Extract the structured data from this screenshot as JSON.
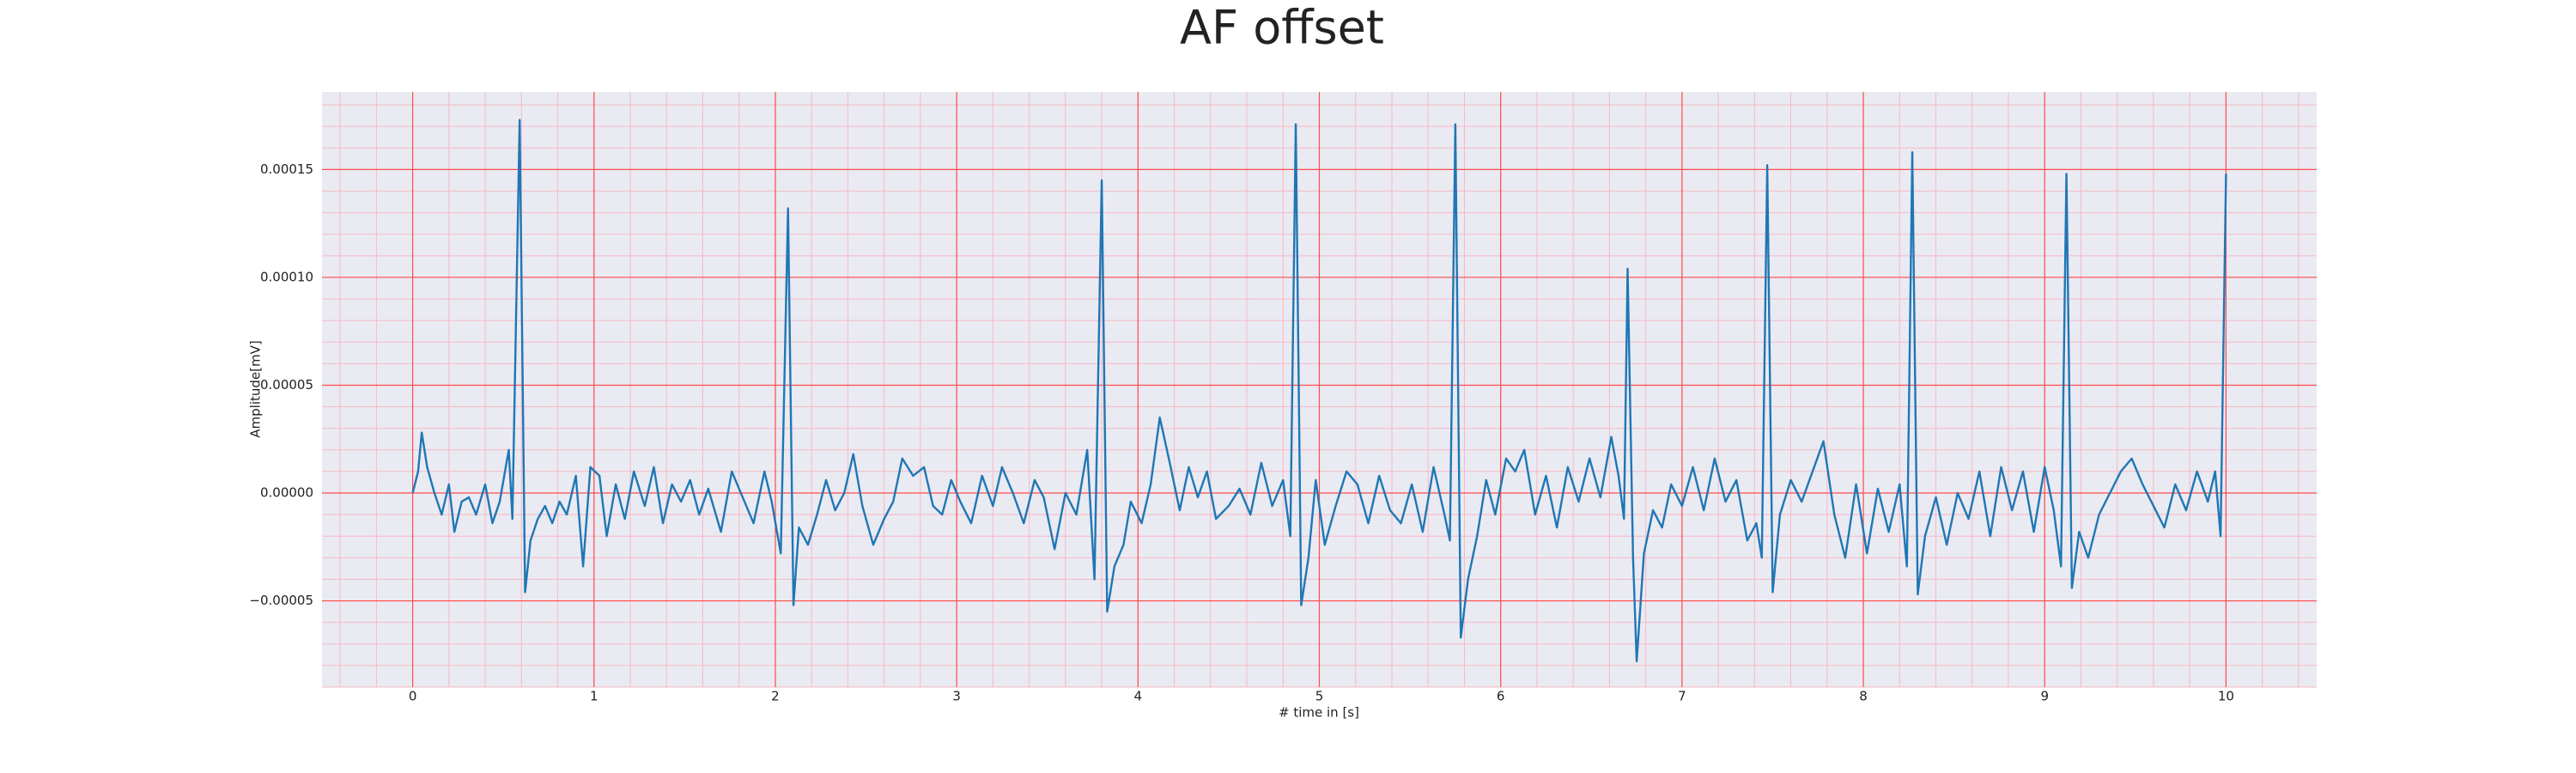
{
  "chart_data": {
    "type": "line",
    "title": "AF offset",
    "xlabel": "# time in [s]",
    "ylabel": "Amplitude[mV]",
    "color": "#1f77b4",
    "grid": true,
    "minor_grid": true,
    "grid_color": "#ff4d4d",
    "minor_grid_color": "#f7b8c4",
    "background": "#eaeaf2",
    "xlim": [
      -0.5,
      10.5
    ],
    "ylim": [
      -9e-05,
      0.000186
    ],
    "xticks": [
      0,
      1,
      2,
      3,
      4,
      5,
      6,
      7,
      8,
      9,
      10
    ],
    "yticks": [
      {
        "value": -5e-05,
        "label": "−0.00005"
      },
      {
        "value": 0,
        "label": "0.00000"
      },
      {
        "value": 5e-05,
        "label": "0.00005"
      },
      {
        "value": 0.0001,
        "label": "0.00010"
      },
      {
        "value": 0.00015,
        "label": "0.00015"
      }
    ],
    "x": [
      0.0,
      0.03,
      0.05,
      0.08,
      0.12,
      0.16,
      0.2,
      0.23,
      0.27,
      0.31,
      0.35,
      0.4,
      0.44,
      0.48,
      0.53,
      0.55,
      0.59,
      0.62,
      0.65,
      0.69,
      0.73,
      0.77,
      0.81,
      0.85,
      0.9,
      0.94,
      0.98,
      1.03,
      1.07,
      1.12,
      1.17,
      1.22,
      1.28,
      1.33,
      1.38,
      1.43,
      1.48,
      1.53,
      1.58,
      1.63,
      1.7,
      1.76,
      1.82,
      1.88,
      1.94,
      1.98,
      2.03,
      2.07,
      2.1,
      2.13,
      2.18,
      2.23,
      2.28,
      2.33,
      2.38,
      2.43,
      2.48,
      2.54,
      2.6,
      2.65,
      2.7,
      2.76,
      2.82,
      2.87,
      2.92,
      2.97,
      3.02,
      3.08,
      3.14,
      3.2,
      3.25,
      3.31,
      3.37,
      3.43,
      3.48,
      3.54,
      3.6,
      3.66,
      3.72,
      3.76,
      3.8,
      3.83,
      3.87,
      3.92,
      3.96,
      4.02,
      4.07,
      4.12,
      4.17,
      4.23,
      4.28,
      4.33,
      4.38,
      4.43,
      4.5,
      4.56,
      4.62,
      4.68,
      4.74,
      4.8,
      4.84,
      4.87,
      4.9,
      4.94,
      4.98,
      5.03,
      5.09,
      5.15,
      5.21,
      5.27,
      5.33,
      5.39,
      5.45,
      5.51,
      5.57,
      5.63,
      5.69,
      5.72,
      5.75,
      5.78,
      5.82,
      5.87,
      5.92,
      5.97,
      6.03,
      6.08,
      6.13,
      6.19,
      6.25,
      6.31,
      6.37,
      6.43,
      6.49,
      6.55,
      6.61,
      6.65,
      6.68,
      6.7,
      6.73,
      6.75,
      6.79,
      6.84,
      6.89,
      6.94,
      7.0,
      7.06,
      7.12,
      7.18,
      7.24,
      7.3,
      7.36,
      7.41,
      7.44,
      7.47,
      7.5,
      7.54,
      7.6,
      7.66,
      7.72,
      7.78,
      7.84,
      7.9,
      7.96,
      8.02,
      8.08,
      8.14,
      8.2,
      8.24,
      8.27,
      8.3,
      8.34,
      8.4,
      8.46,
      8.52,
      8.58,
      8.64,
      8.7,
      8.76,
      8.82,
      8.88,
      8.94,
      9.0,
      9.05,
      9.09,
      9.12,
      9.15,
      9.19,
      9.24,
      9.3,
      9.36,
      9.42,
      9.48,
      9.54,
      9.6,
      9.66,
      9.72,
      9.78,
      9.84,
      9.9,
      9.94,
      9.97,
      10.0
    ],
    "values": [
      0.0,
      1e-05,
      2.8e-05,
      1.2e-05,
      0.0,
      -1e-05,
      4e-06,
      -1.8e-05,
      -4e-06,
      -2e-06,
      -1e-05,
      4e-06,
      -1.4e-05,
      -4e-06,
      2e-05,
      -1.2e-05,
      0.000173,
      -4.6e-05,
      -2.2e-05,
      -1.2e-05,
      -6e-06,
      -1.4e-05,
      -4e-06,
      -1e-05,
      8e-06,
      -3.4e-05,
      1.2e-05,
      8e-06,
      -2e-05,
      4e-06,
      -1.2e-05,
      1e-05,
      -6e-06,
      1.2e-05,
      -1.4e-05,
      4e-06,
      -4e-06,
      6e-06,
      -1e-05,
      2e-06,
      -1.8e-05,
      1e-05,
      -2e-06,
      -1.4e-05,
      1e-05,
      -4e-06,
      -2.8e-05,
      0.000132,
      -5.2e-05,
      -1.6e-05,
      -2.4e-05,
      -1e-05,
      6e-06,
      -8e-06,
      0.0,
      1.8e-05,
      -6e-06,
      -2.4e-05,
      -1.2e-05,
      -4e-06,
      1.6e-05,
      8e-06,
      1.2e-05,
      -6e-06,
      -1e-05,
      6e-06,
      -4e-06,
      -1.4e-05,
      8e-06,
      -6e-06,
      1.2e-05,
      0.0,
      -1.4e-05,
      6e-06,
      -2e-06,
      -2.6e-05,
      0.0,
      -1e-05,
      2e-05,
      -4e-05,
      0.000145,
      -5.5e-05,
      -3.4e-05,
      -2.4e-05,
      -4e-06,
      -1.4e-05,
      4e-06,
      3.5e-05,
      1.6e-05,
      -8e-06,
      1.2e-05,
      -2e-06,
      1e-05,
      -1.2e-05,
      -6e-06,
      2e-06,
      -1e-05,
      1.4e-05,
      -6e-06,
      6e-06,
      -2e-05,
      0.000171,
      -5.2e-05,
      -3e-05,
      6e-06,
      -2.4e-05,
      -6e-06,
      1e-05,
      4e-06,
      -1.4e-05,
      8e-06,
      -8e-06,
      -1.4e-05,
      4e-06,
      -1.8e-05,
      1.2e-05,
      -1e-05,
      -2.2e-05,
      0.000171,
      -6.7e-05,
      -4e-05,
      -2e-05,
      6e-06,
      -1e-05,
      1.6e-05,
      1e-05,
      2e-05,
      -1e-05,
      8e-06,
      -1.6e-05,
      1.2e-05,
      -4e-06,
      1.6e-05,
      -2e-06,
      2.6e-05,
      8e-06,
      -1.2e-05,
      0.000104,
      -3e-05,
      -7.8e-05,
      -2.8e-05,
      -8e-06,
      -1.6e-05,
      4e-06,
      -6e-06,
      1.2e-05,
      -8e-06,
      1.6e-05,
      -4e-06,
      6e-06,
      -2.2e-05,
      -1.4e-05,
      -3e-05,
      0.000152,
      -4.6e-05,
      -1e-05,
      6e-06,
      -4e-06,
      1e-05,
      2.4e-05,
      -1e-05,
      -3e-05,
      4e-06,
      -2.8e-05,
      2e-06,
      -1.8e-05,
      4e-06,
      -3.4e-05,
      0.000158,
      -4.7e-05,
      -2e-05,
      -2e-06,
      -2.4e-05,
      0.0,
      -1.2e-05,
      1e-05,
      -2e-05,
      1.2e-05,
      -8e-06,
      1e-05,
      -1.8e-05,
      1.2e-05,
      -8e-06,
      -3.4e-05,
      0.000148,
      -4.4e-05,
      -1.8e-05,
      -3e-05,
      -1e-05,
      0.0,
      1e-05,
      1.6e-05,
      4e-06,
      -6e-06,
      -1.6e-05,
      4e-06,
      -8e-06,
      1e-05,
      -4e-06,
      1e-05,
      -2e-05,
      0.000148
    ]
  }
}
